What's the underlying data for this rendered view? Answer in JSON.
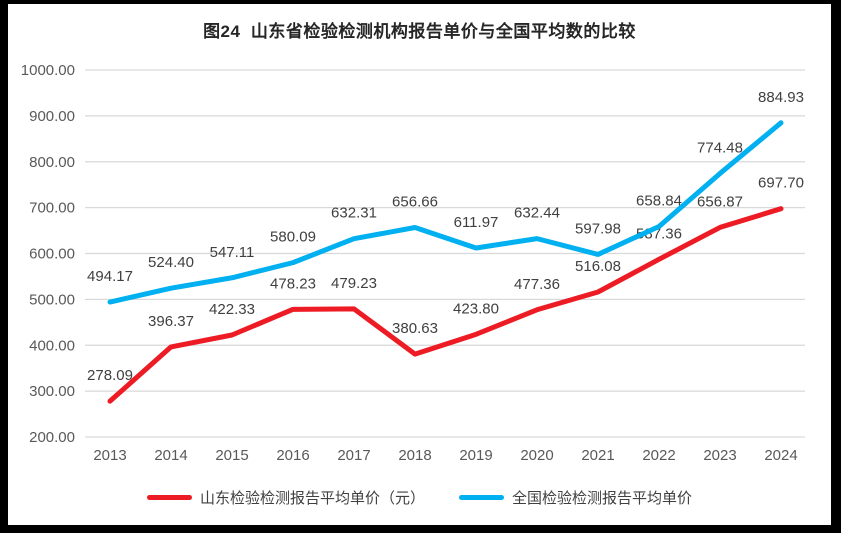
{
  "chart_data": {
    "type": "line",
    "title": "图24  山东省检验检测机构报告单价与全国平均数的比较",
    "xlabel": "",
    "ylabel": "",
    "categories": [
      "2013",
      "2014",
      "2015",
      "2016",
      "2017",
      "2018",
      "2019",
      "2020",
      "2021",
      "2022",
      "2023",
      "2024"
    ],
    "series": [
      {
        "id": "shandong",
        "name": "山东检验检测报告平均单价（元）",
        "color": "#ED1C24",
        "values": [
          278.09,
          396.37,
          422.33,
          478.23,
          479.23,
          380.63,
          423.8,
          477.36,
          516.08,
          587.36,
          656.87,
          697.7
        ]
      },
      {
        "id": "national",
        "name": "全国检验检测报告平均单价",
        "color": "#00B0F0",
        "values": [
          494.17,
          524.4,
          547.11,
          580.09,
          632.31,
          656.66,
          611.97,
          632.44,
          597.98,
          658.84,
          774.48,
          884.93
        ]
      }
    ],
    "ylim": [
      200,
      1000
    ],
    "ytick_step": 100,
    "value_decimals": 2,
    "grid": true,
    "legend_position": "bottom",
    "colors": {
      "gridline": "#D9D9D9",
      "axis_tick_label": "#595959",
      "data_label": "#404040",
      "title": "#262626",
      "background": "#FFFFFF",
      "frame_border": "#000000"
    }
  }
}
